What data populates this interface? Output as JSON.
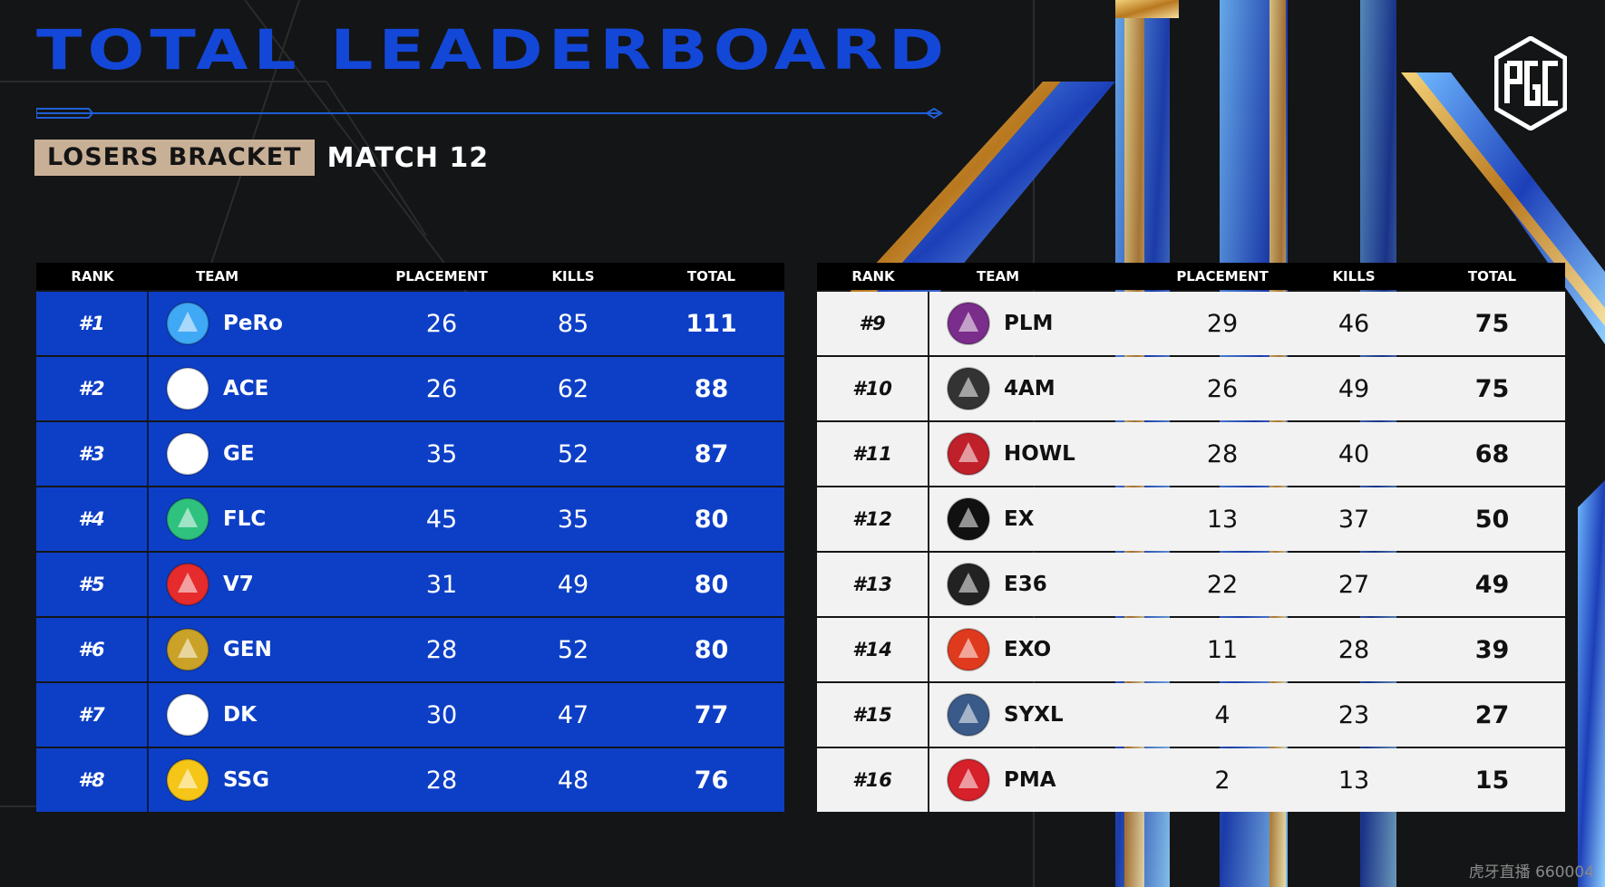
{
  "header": {
    "title": "TOTAL LEADERBOARD",
    "bracket_label": "LOSERS BRACKET",
    "match_label": "MATCH 12",
    "brand_logo": "pgc-logo"
  },
  "columns": {
    "rank": "RANK",
    "team": "TEAM",
    "placement": "PLACEMENT",
    "kills": "KILLS",
    "total": "TOTAL"
  },
  "left_table": [
    {
      "rank": "#1",
      "team": "PeRo",
      "placement": "26",
      "kills": "85",
      "total": "111",
      "logo": "pero-logo",
      "color": "#3fa9f5"
    },
    {
      "rank": "#2",
      "team": "ACE",
      "placement": "26",
      "kills": "62",
      "total": "88",
      "logo": "ace-logo",
      "color": "#ffffff"
    },
    {
      "rank": "#3",
      "team": "GE",
      "placement": "35",
      "kills": "52",
      "total": "87",
      "logo": "genius-esports-logo",
      "color": "#ffffff"
    },
    {
      "rank": "#4",
      "team": "FLC",
      "placement": "45",
      "kills": "35",
      "total": "80",
      "logo": "flc-logo",
      "color": "#2ec27e"
    },
    {
      "rank": "#5",
      "team": "V7",
      "placement": "31",
      "kills": "49",
      "total": "80",
      "logo": "v7-logo",
      "color": "#e52b2b"
    },
    {
      "rank": "#6",
      "team": "GEN",
      "placement": "28",
      "kills": "52",
      "total": "80",
      "logo": "gen-logo",
      "color": "#c9a227"
    },
    {
      "rank": "#7",
      "team": "DK",
      "placement": "30",
      "kills": "47",
      "total": "77",
      "logo": "dk-logo",
      "color": "#ffffff"
    },
    {
      "rank": "#8",
      "team": "SSG",
      "placement": "28",
      "kills": "48",
      "total": "76",
      "logo": "ssg-logo",
      "color": "#f5c518"
    }
  ],
  "right_table": [
    {
      "rank": "#9",
      "team": "PLM",
      "placement": "29",
      "kills": "46",
      "total": "75",
      "logo": "plm-logo",
      "color": "#7b2d8b"
    },
    {
      "rank": "#10",
      "team": "4AM",
      "placement": "26",
      "kills": "49",
      "total": "75",
      "logo": "4am-logo",
      "color": "#333333"
    },
    {
      "rank": "#11",
      "team": "HOWL",
      "placement": "28",
      "kills": "40",
      "total": "68",
      "logo": "howl-logo",
      "color": "#c0202a"
    },
    {
      "rank": "#12",
      "team": "EX",
      "placement": "13",
      "kills": "37",
      "total": "50",
      "logo": "ex-logo",
      "color": "#111111"
    },
    {
      "rank": "#13",
      "team": "E36",
      "placement": "22",
      "kills": "27",
      "total": "49",
      "logo": "e36-logo",
      "color": "#222222"
    },
    {
      "rank": "#14",
      "team": "EXO",
      "placement": "11",
      "kills": "28",
      "total": "39",
      "logo": "exo-logo",
      "color": "#e03a1e"
    },
    {
      "rank": "#15",
      "team": "SYXL",
      "placement": "4",
      "kills": "23",
      "total": "27",
      "logo": "syxl-logo",
      "color": "#3a5a8a"
    },
    {
      "rank": "#16",
      "team": "PMA",
      "placement": "2",
      "kills": "13",
      "total": "15",
      "logo": "pma-logo",
      "color": "#d6202a"
    }
  ],
  "watermark": "虎牙直播 660004",
  "colors": {
    "title_blue": "#1347d8",
    "row_blue": "#0d3fc6",
    "row_white": "#f2f2f2",
    "badge_tan": "#c8b097",
    "gold": "#d9a441"
  }
}
